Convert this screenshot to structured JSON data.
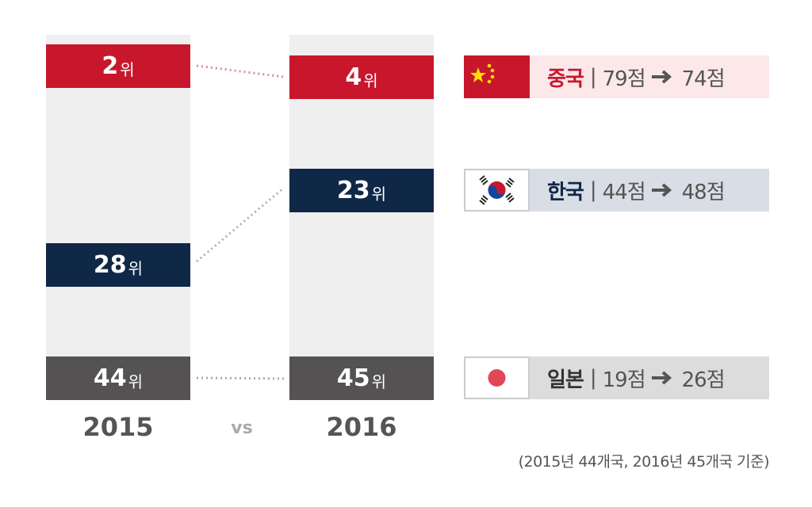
{
  "rank_unit": "위",
  "columns": [
    {
      "year": "2015",
      "blocks": [
        {
          "rank": "2"
        },
        {
          "rank": "28"
        },
        {
          "rank": "44"
        }
      ]
    },
    {
      "year": "2016",
      "blocks": [
        {
          "rank": "4"
        },
        {
          "rank": "23"
        },
        {
          "rank": "45"
        }
      ]
    }
  ],
  "vs": "vs",
  "separator": "|",
  "countries": [
    {
      "name": "중국",
      "score_2015": "79점",
      "score_2016": "74점"
    },
    {
      "name": "한국",
      "score_2015": "44점",
      "score_2016": "48점"
    },
    {
      "name": "일본",
      "score_2015": "19점",
      "score_2016": "26점"
    }
  ],
  "footnote": "(2015년 44개국, 2016년 45개국 기준)"
}
